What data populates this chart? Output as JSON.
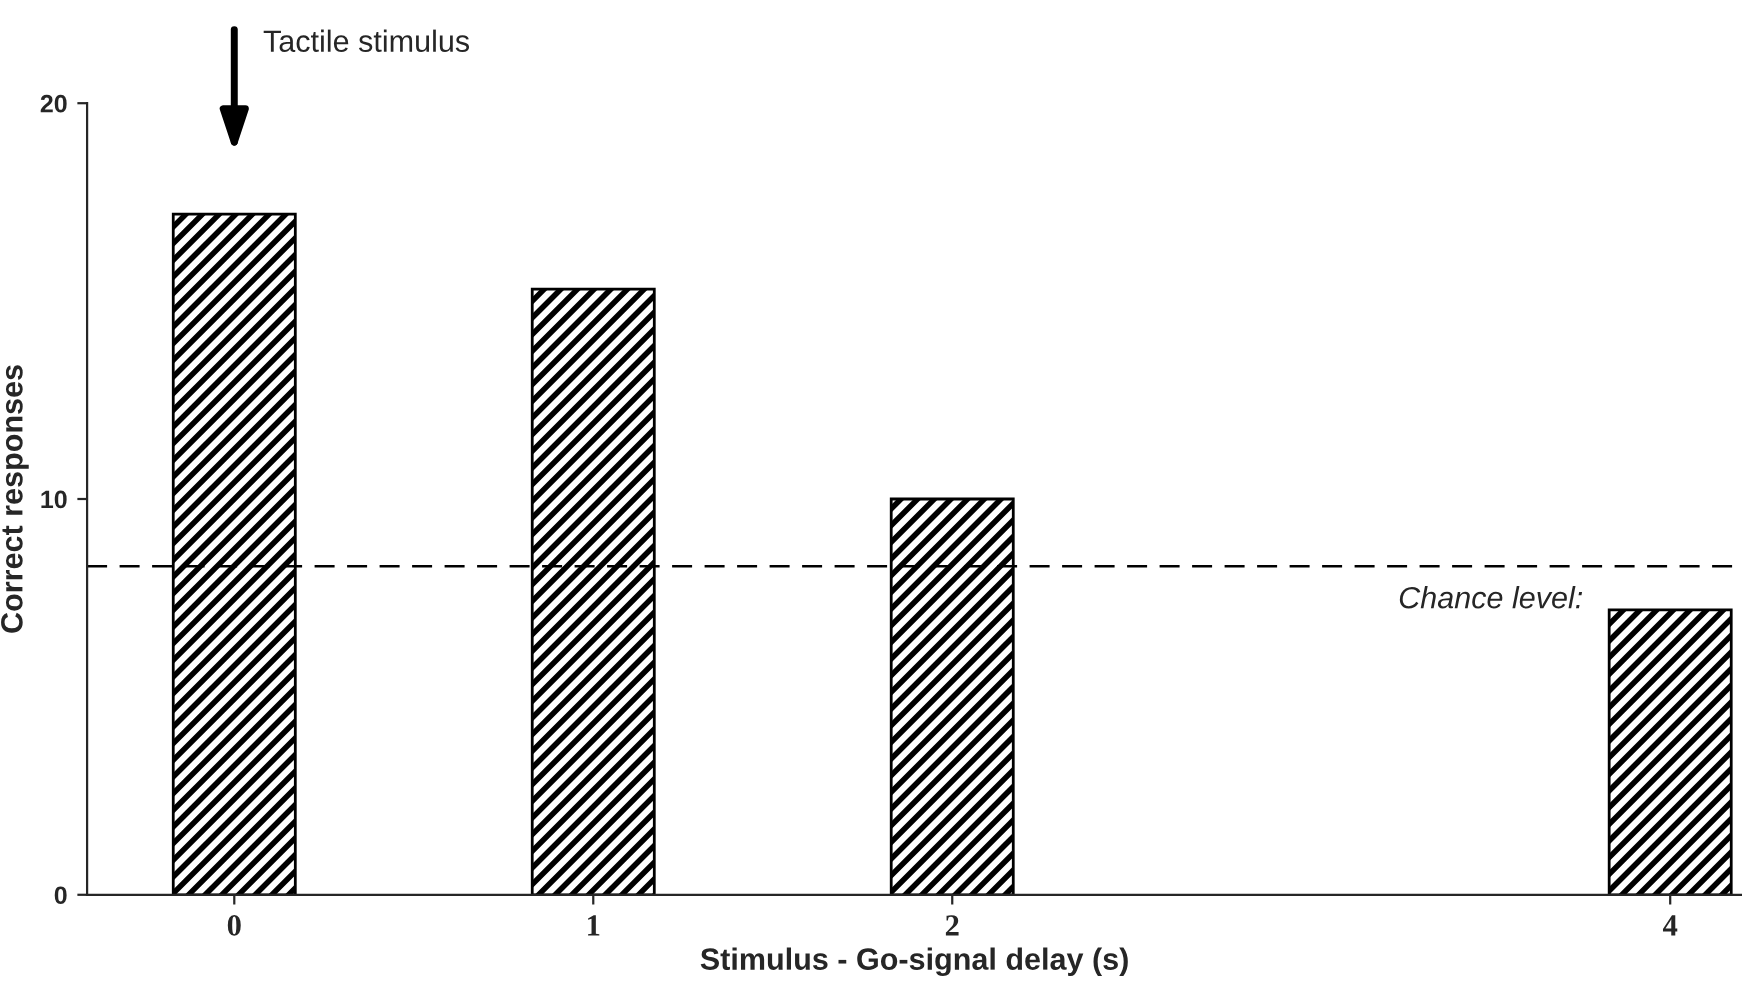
{
  "chart_data": {
    "type": "bar",
    "xlabel": "Stimulus - Go-signal delay (s)",
    "ylabel": "Correct responses",
    "x": [
      0,
      1,
      2,
      4
    ],
    "values": [
      17.2,
      15.3,
      10.0,
      7.2
    ],
    "color": "#000000",
    "xlim": [
      -0.41,
      4.2
    ],
    "xticks": [
      0,
      1,
      2,
      4
    ],
    "ylim": [
      0,
      20
    ],
    "yticks": [
      0,
      10,
      20
    ],
    "ref_lines": [
      {
        "axis": "y",
        "value": 8.3,
        "label": "Chance level:",
        "line_style": "dashed",
        "color": "#000000"
      }
    ],
    "annotations": [
      "Tactile stimulus"
    ],
    "grid": false,
    "legend": false
  }
}
